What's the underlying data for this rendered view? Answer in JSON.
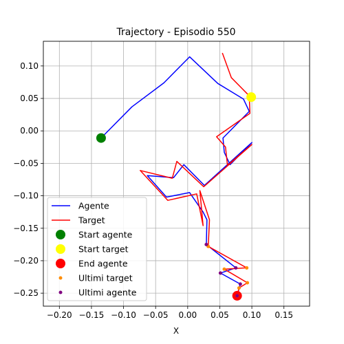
{
  "chart_data": {
    "type": "line",
    "title": "Trajectory - Episodio 550",
    "xlabel": "X",
    "ylabel": "Y",
    "xlim": [
      -0.225,
      0.19
    ],
    "ylim": [
      -0.27,
      0.138
    ],
    "grid": true,
    "legend_position": "bottom-left",
    "x_ticks": [
      -0.2,
      -0.15,
      -0.1,
      -0.05,
      0.0,
      0.05,
      0.1,
      0.15
    ],
    "x_tick_labels": [
      "−0.20",
      "−0.15",
      "−0.10",
      "−0.05",
      "0.00",
      "0.05",
      "0.10",
      "0.15"
    ],
    "y_ticks": [
      0.1,
      0.05,
      0.0,
      -0.05,
      -0.1,
      -0.15,
      -0.2,
      -0.25
    ],
    "y_tick_labels": [
      "0.10",
      "0.05",
      "0.00",
      "−0.05",
      "−0.10",
      "−0.15",
      "−0.20",
      "−0.25"
    ],
    "series": [
      {
        "name": "Agente",
        "kind": "line",
        "color": "#0000ff",
        "points": [
          [
            -0.135,
            -0.011
          ],
          [
            -0.087,
            0.037
          ],
          [
            -0.037,
            0.074
          ],
          [
            0.003,
            0.114
          ],
          [
            0.047,
            0.073
          ],
          [
            0.087,
            0.049
          ],
          [
            0.096,
            0.03
          ],
          [
            0.055,
            -0.011
          ],
          [
            0.057,
            -0.033
          ],
          [
            0.066,
            -0.052
          ],
          [
            0.1,
            -0.018
          ],
          [
            0.026,
            -0.084
          ],
          [
            -0.006,
            -0.052
          ],
          [
            -0.022,
            -0.072
          ],
          [
            -0.063,
            -0.069
          ],
          [
            -0.033,
            -0.102
          ],
          [
            0.003,
            -0.095
          ],
          [
            0.024,
            -0.125
          ],
          [
            0.03,
            -0.137
          ],
          [
            0.029,
            -0.175
          ],
          [
            0.075,
            -0.211
          ],
          [
            0.051,
            -0.219
          ],
          [
            0.082,
            -0.236
          ],
          [
            0.077,
            -0.254
          ]
        ]
      },
      {
        "name": "Target",
        "kind": "line",
        "color": "#ff0000",
        "points": [
          [
            0.054,
            0.12
          ],
          [
            0.068,
            0.082
          ],
          [
            0.096,
            0.054
          ],
          [
            0.097,
            0.027
          ],
          [
            0.045,
            -0.009
          ],
          [
            0.059,
            -0.025
          ],
          [
            0.062,
            -0.053
          ],
          [
            0.1,
            -0.021
          ],
          [
            0.025,
            -0.086
          ],
          [
            -0.017,
            -0.047
          ],
          [
            -0.024,
            -0.073
          ],
          [
            -0.074,
            -0.061
          ],
          [
            -0.031,
            -0.107
          ],
          [
            0.014,
            -0.097
          ],
          [
            0.024,
            -0.146
          ],
          [
            0.019,
            -0.092
          ],
          [
            0.034,
            -0.137
          ],
          [
            0.032,
            -0.178
          ],
          [
            0.092,
            -0.211
          ],
          [
            0.057,
            -0.213
          ],
          [
            0.093,
            -0.234
          ],
          [
            0.08,
            -0.242
          ],
          [
            0.077,
            -0.254
          ]
        ]
      },
      {
        "name": "Start agente",
        "kind": "marker",
        "color": "#008000",
        "size": 7,
        "points": [
          [
            -0.135,
            -0.011
          ]
        ]
      },
      {
        "name": "Start target",
        "kind": "marker",
        "color": "#ffff00",
        "size": 7,
        "points": [
          [
            0.099,
            0.052
          ]
        ]
      },
      {
        "name": "End agente",
        "kind": "marker",
        "color": "#ff0000",
        "size": 7,
        "points": [
          [
            0.077,
            -0.254
          ]
        ]
      },
      {
        "name": "Ultimi target",
        "kind": "marker",
        "color": "#ff8c00",
        "size": 2.5,
        "points": [
          [
            0.032,
            -0.178
          ],
          [
            0.057,
            -0.213
          ],
          [
            0.092,
            -0.211
          ],
          [
            0.093,
            -0.234
          ],
          [
            0.08,
            -0.242
          ],
          [
            0.077,
            -0.254
          ]
        ]
      },
      {
        "name": "Ultimi agente",
        "kind": "marker",
        "color": "#800080",
        "size": 2.5,
        "points": [
          [
            0.029,
            -0.175
          ],
          [
            0.075,
            -0.211
          ],
          [
            0.051,
            -0.219
          ],
          [
            0.082,
            -0.236
          ],
          [
            0.077,
            -0.254
          ]
        ]
      }
    ]
  }
}
